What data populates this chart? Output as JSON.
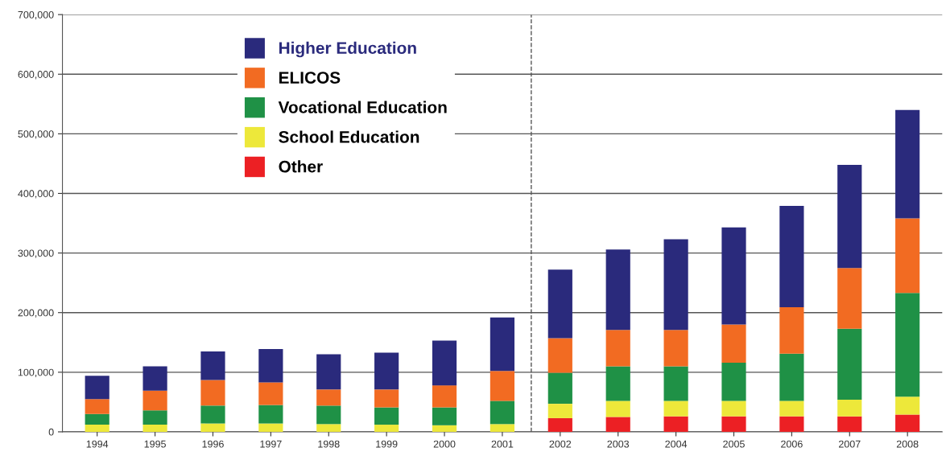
{
  "chart_data": {
    "type": "bar",
    "stacked": true,
    "x": [
      1994,
      1995,
      1996,
      1997,
      1998,
      1999,
      2000,
      2001,
      2002,
      2003,
      2004,
      2005,
      2006,
      2007,
      2008
    ],
    "series": [
      {
        "name": "Other",
        "color": "#ec2024",
        "values": [
          0,
          0,
          0,
          0,
          0,
          0,
          0,
          0,
          23000,
          25000,
          26000,
          26000,
          26000,
          26000,
          29000
        ]
      },
      {
        "name": "School Education",
        "color": "#ede83a",
        "values": [
          12000,
          12000,
          14000,
          14000,
          13000,
          12000,
          11000,
          13000,
          24000,
          27000,
          26000,
          26000,
          26000,
          28000,
          30000
        ]
      },
      {
        "name": "Vocational Education",
        "color": "#1f9146",
        "values": [
          18000,
          24000,
          30000,
          31000,
          31000,
          29000,
          30000,
          39000,
          52000,
          58000,
          58000,
          64000,
          79000,
          119000,
          174000
        ]
      },
      {
        "name": "ELICOS",
        "color": "#f26b22",
        "values": [
          25000,
          33000,
          43000,
          38000,
          27000,
          30000,
          37000,
          50000,
          58000,
          61000,
          61000,
          64000,
          78000,
          102000,
          125000
        ]
      },
      {
        "name": "Higher Education",
        "color": "#2a2a7c",
        "values": [
          39000,
          41000,
          48000,
          56000,
          59000,
          62000,
          75000,
          90000,
          115000,
          135000,
          152000,
          163000,
          170000,
          173000,
          182000
        ]
      }
    ],
    "xlim": [
      1993.4,
      2008.6
    ],
    "xticks": [
      1994,
      1995,
      1996,
      1997,
      1998,
      1999,
      2000,
      2001,
      2002,
      2003,
      2004,
      2005,
      2006,
      2007,
      2008
    ],
    "ylim": [
      0,
      700000
    ],
    "yticks": [
      {
        "value": 0,
        "label": "0"
      },
      {
        "value": 100000,
        "label": "100,000"
      },
      {
        "value": 200000,
        "label": "200,000"
      },
      {
        "value": 300000,
        "label": "300,000"
      },
      {
        "value": 400000,
        "label": "400,000"
      },
      {
        "value": 500000,
        "label": "500,000"
      },
      {
        "value": 600000,
        "label": "600,000"
      },
      {
        "value": 700000,
        "label": "700,000"
      }
    ],
    "ref_lines": [
      {
        "axis": "x",
        "value": 2001.5,
        "color": "#555555",
        "line_style": "dashed"
      }
    ],
    "grid": "y",
    "legend": "top"
  }
}
